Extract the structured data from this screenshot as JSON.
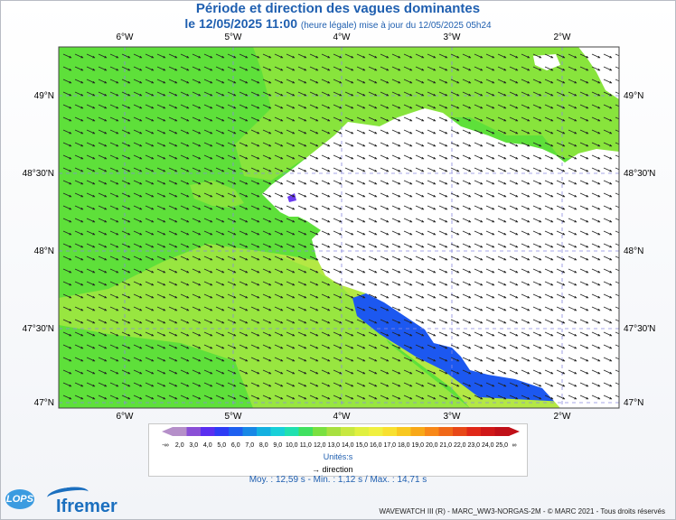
{
  "title": "Période et direction des vagues dominantes",
  "subtitle": {
    "date": "le 12/05/2025 11:00",
    "note": "(heure légale) mise à jour du 12/05/2025 05h24"
  },
  "axes": {
    "longitude_labels": [
      "6°W",
      "5°W",
      "4°W",
      "3°W",
      "2°W"
    ],
    "latitude_labels": [
      "49°N",
      "48°30'N",
      "48°N",
      "47°30'N",
      "47°N"
    ]
  },
  "legend": {
    "tick_labels": [
      "-∞",
      "2,0",
      "3,0",
      "4,0",
      "5,0",
      "6,0",
      "7,0",
      "8,0",
      "9,0",
      "10,0",
      "11,0",
      "12,0",
      "13,0",
      "14,0",
      "15,0",
      "16,0",
      "17,0",
      "18,0",
      "19,0",
      "20,0",
      "21,0",
      "22,0",
      "23,0",
      "24,0",
      "25,0",
      "∞"
    ],
    "colors": [
      "#b58fc9",
      "#8a4fd6",
      "#5a2ef0",
      "#2e3cf5",
      "#1e60f0",
      "#1888e6",
      "#14b0e0",
      "#18d0d8",
      "#20e0b0",
      "#40e060",
      "#7ae040",
      "#a8e040",
      "#c8e840",
      "#e0f040",
      "#f0f040",
      "#f8e030",
      "#f8c820",
      "#f8a818",
      "#f88818",
      "#f06818",
      "#e84818",
      "#e02818",
      "#d01818",
      "#c01018"
    ],
    "unit": "Unités:s",
    "direction_label": "direction"
  },
  "stats": {
    "text": "Moy. : 12,59 s   -   Min. : 1,12 s / Max. : 14,71 s"
  },
  "footer": "WAVEWATCH III (R) - MARC_WW3-NORGAS-2M - © MARC 2021 - Tous droits réservés",
  "logos": {
    "lops": "LOPS",
    "ifremer": "Ifremer"
  },
  "map_colors": {
    "green": "#5ee03a",
    "light_green": "#88e43c",
    "yellow_green": "#b4e844",
    "blue": "#1c58f0",
    "land": "#ffffff",
    "grid": "#8a8ae0"
  }
}
